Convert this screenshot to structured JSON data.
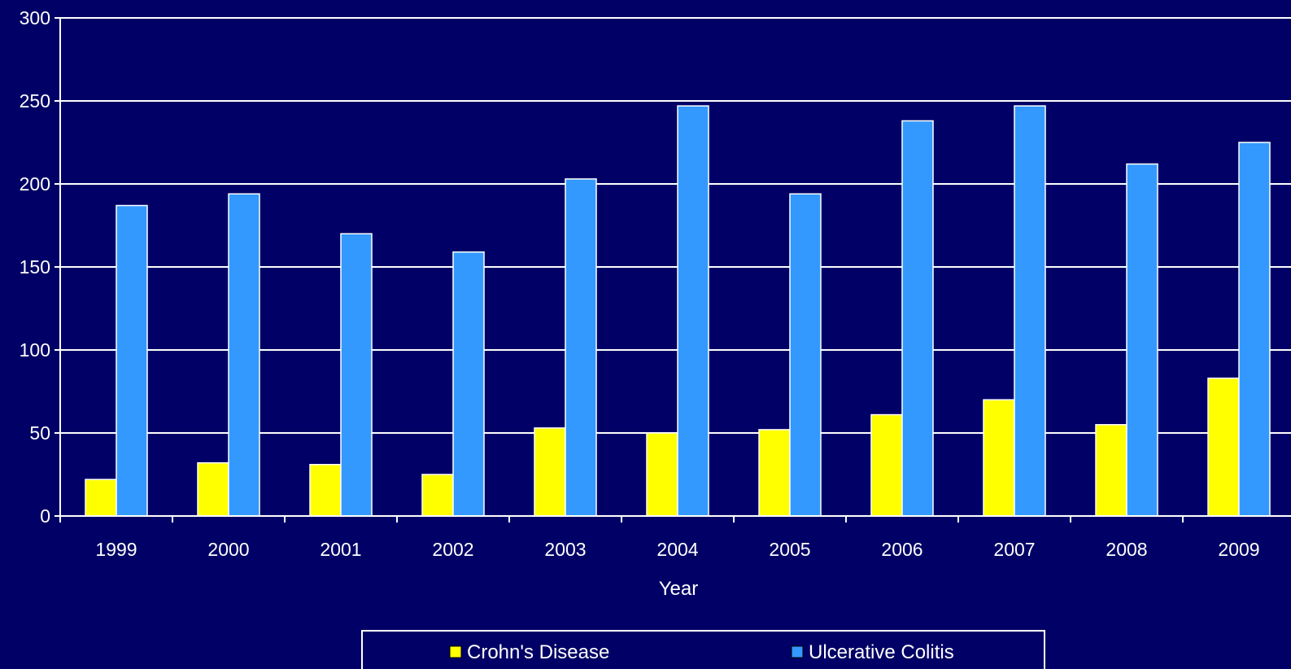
{
  "chart_data": {
    "type": "bar",
    "title": "",
    "xlabel": "Year",
    "ylabel": "",
    "ylim": [
      0,
      300
    ],
    "yticks": [
      0,
      50,
      100,
      150,
      200,
      250,
      300
    ],
    "categories": [
      "1999",
      "2000",
      "2001",
      "2002",
      "2003",
      "2004",
      "2005",
      "2006",
      "2007",
      "2008",
      "2009"
    ],
    "series": [
      {
        "name": "Crohn's Disease",
        "color": "#ffff00",
        "values": [
          22,
          32,
          31,
          25,
          53,
          50,
          52,
          61,
          70,
          55,
          83
        ]
      },
      {
        "name": "Ulcerative Colitis",
        "color": "#3399ff",
        "values": [
          187,
          194,
          170,
          159,
          203,
          247,
          194,
          238,
          247,
          212,
          225
        ]
      }
    ],
    "grid": true,
    "legend_position": "bottom"
  },
  "colors": {
    "background": "#000066",
    "axis": "#ffffff",
    "gridline": "#ffffff"
  }
}
